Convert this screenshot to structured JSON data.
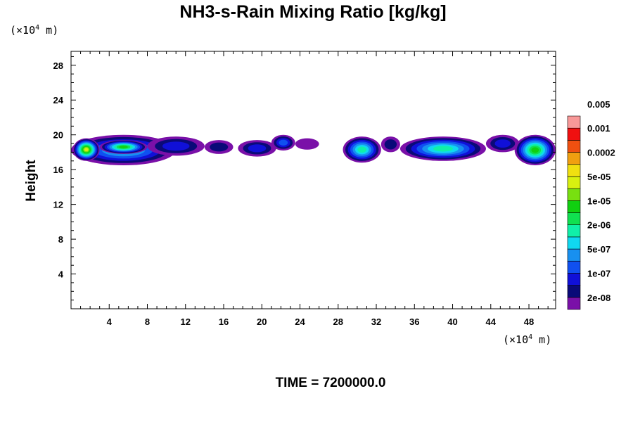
{
  "chart_data": {
    "type": "heatmap",
    "title": "NH3-s-Rain Mixing Ratio [kg/kg]",
    "ylabel": "Height",
    "xunit": {
      "prefix": "(×10",
      "exp": "4",
      "suffix": " m)"
    },
    "yunit": {
      "prefix": "(×10",
      "exp": "4",
      "suffix": " m)"
    },
    "xlim": [
      0,
      50.8
    ],
    "ylim": [
      0,
      29.6
    ],
    "xticks": [
      4,
      8,
      12,
      16,
      20,
      24,
      28,
      32,
      36,
      40,
      44,
      48
    ],
    "yticks": [
      4,
      8,
      12,
      16,
      20,
      24,
      28
    ],
    "colorbar": {
      "colors": [
        "#7a10a8",
        "#0a0a78",
        "#1010d8",
        "#1050f0",
        "#1890f0",
        "#10d8f0",
        "#10f0a8",
        "#10e050",
        "#10d010",
        "#78e010",
        "#d8f010",
        "#f0e010",
        "#f0a010",
        "#f05010",
        "#f01010",
        "#f89898"
      ],
      "labels": [
        "2e-08",
        "1e-07",
        "5e-07",
        "2e-06",
        "1e-05",
        "5e-05",
        "0.0002",
        "0.001",
        "0.005"
      ]
    },
    "regions": [
      {
        "x": [
          0,
          11
        ],
        "y": [
          16.5,
          20
        ],
        "level": 5
      },
      {
        "x": [
          0.2,
          3
        ],
        "y": [
          17,
          19.6
        ],
        "level": 10
      },
      {
        "x": [
          3,
          8
        ],
        "y": [
          17.8,
          19.4
        ],
        "level": 8
      },
      {
        "x": [
          8,
          14
        ],
        "y": [
          17.6,
          19.8
        ],
        "level": 2
      },
      {
        "x": [
          14,
          17
        ],
        "y": [
          17.8,
          19.4
        ],
        "level": 1
      },
      {
        "x": [
          17.5,
          21.5
        ],
        "y": [
          17.5,
          19.4
        ],
        "level": 2
      },
      {
        "x": [
          21,
          23.5
        ],
        "y": [
          18.2,
          20
        ],
        "level": 3
      },
      {
        "x": [
          23.5,
          26
        ],
        "y": [
          18.3,
          19.6
        ],
        "level": 0
      },
      {
        "x": [
          28.5,
          32.5
        ],
        "y": [
          16.8,
          19.8
        ],
        "level": 6
      },
      {
        "x": [
          32.5,
          34.5
        ],
        "y": [
          18,
          19.8
        ],
        "level": 1
      },
      {
        "x": [
          34.5,
          43.5
        ],
        "y": [
          17,
          19.8
        ],
        "level": 6
      },
      {
        "x": [
          43.5,
          47
        ],
        "y": [
          18,
          20
        ],
        "level": 2
      },
      {
        "x": [
          46.5,
          50.8
        ],
        "y": [
          16.5,
          20
        ],
        "level": 8
      }
    ]
  },
  "footer": {
    "time_label": "TIME = 7200000.0"
  }
}
